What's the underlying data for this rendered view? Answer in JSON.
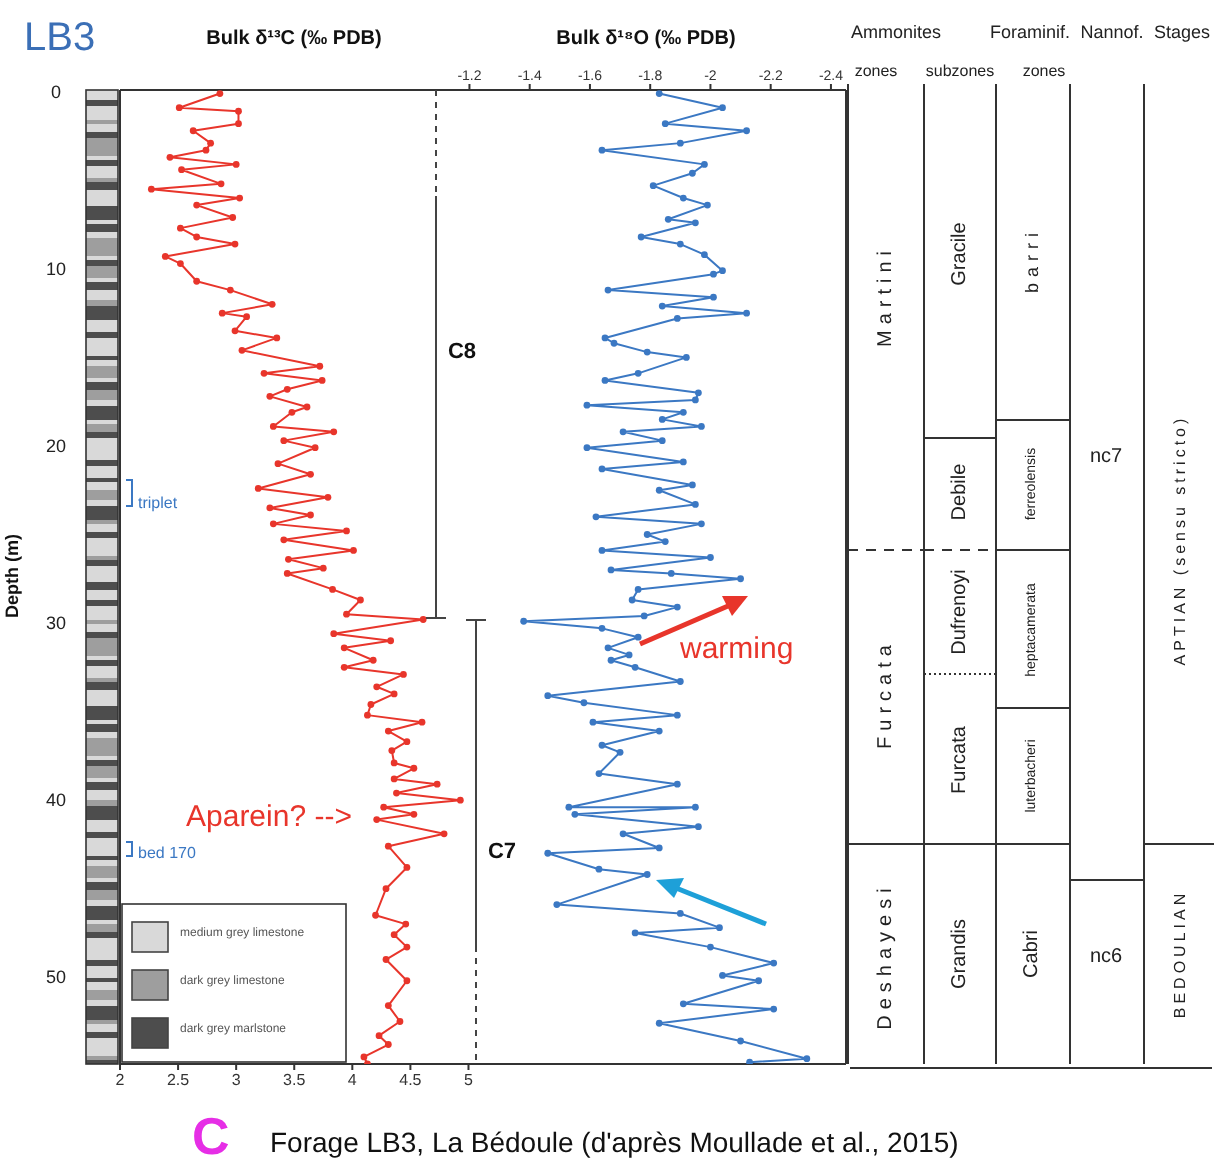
{
  "chart_data": {
    "type": "line",
    "title": "LB3",
    "xlabel": "Bulk δ¹³C (‰ PDB)",
    "x2label": "Bulk δ¹⁸O (‰ PDB)",
    "ylabel": "Depth (m)",
    "marker": "circle",
    "xlim": [
      2,
      8.25
    ],
    "xticks": [
      2,
      2.5,
      3,
      3.5,
      4,
      4.5,
      5
    ],
    "x2lim": [
      -0.04,
      -2.45
    ],
    "x2ticks": [
      -1.2,
      -1.4,
      -1.6,
      -1.8,
      -2,
      -2.2,
      -2.4
    ],
    "ylim": [
      55,
      0
    ],
    "yticks": [
      0,
      10,
      20,
      30,
      40,
      50
    ],
    "series": [
      {
        "color": "#e8352b",
        "x": [
          2.86,
          2.51,
          3.02,
          3.02,
          2.63,
          2.78,
          2.74,
          2.43,
          3.0,
          2.53,
          2.87,
          2.27,
          3.03,
          2.66,
          2.97,
          2.52,
          2.66,
          2.99,
          2.39,
          2.52,
          2.66,
          2.95,
          3.31,
          2.88,
          3.09,
          2.99,
          3.35,
          3.05,
          3.72,
          3.24,
          3.74,
          3.44,
          3.29,
          3.61,
          3.48,
          3.32,
          3.84,
          3.41,
          3.68,
          3.36,
          3.64,
          3.19,
          3.79,
          3.29,
          3.64,
          3.32,
          3.95,
          3.41,
          4.01,
          3.45,
          3.75,
          3.44,
          3.83,
          4.07,
          3.95,
          4.61,
          3.84,
          4.33,
          3.93,
          4.18,
          3.93,
          4.44,
          4.21,
          4.36,
          4.16,
          4.13,
          4.6,
          4.31,
          4.47,
          4.34,
          4.36,
          4.53,
          4.36,
          4.73,
          4.38,
          4.93,
          4.27,
          4.53,
          4.21,
          4.79,
          4.31,
          4.47,
          4.29,
          4.2,
          4.46,
          4.36,
          4.47,
          4.29,
          4.47,
          4.31,
          4.41,
          4.23,
          4.31,
          4.1,
          4.13
        ],
        "values": [
          0.2,
          1.0,
          1.2,
          1.9,
          2.3,
          3.0,
          3.4,
          3.8,
          4.2,
          4.5,
          5.3,
          5.6,
          6.1,
          6.5,
          7.2,
          7.8,
          8.3,
          8.7,
          9.4,
          9.8,
          10.8,
          11.3,
          12.1,
          12.6,
          12.8,
          13.6,
          14.0,
          14.7,
          15.6,
          16.0,
          16.4,
          16.9,
          17.3,
          17.9,
          18.2,
          19.0,
          19.3,
          19.8,
          20.2,
          21.1,
          21.7,
          22.5,
          23.0,
          23.6,
          24.0,
          24.5,
          24.9,
          25.4,
          26.0,
          26.5,
          27.0,
          27.3,
          28.2,
          28.8,
          29.6,
          29.9,
          30.7,
          31.1,
          31.5,
          32.2,
          32.6,
          33.0,
          33.7,
          34.1,
          34.7,
          35.3,
          35.7,
          36.2,
          36.8,
          37.3,
          38.0,
          38.3,
          38.9,
          39.2,
          39.7,
          40.1,
          40.5,
          40.9,
          41.2,
          42.0,
          42.7,
          43.9,
          45.1,
          46.6,
          47.1,
          47.7,
          48.4,
          49.1,
          50.3,
          51.7,
          52.6,
          53.4,
          53.9,
          54.6,
          55.0
        ]
      },
      {
        "color": "#3b78c3",
        "axis": "x2",
        "x": [
          -1.83,
          -2.04,
          -1.85,
          -2.12,
          -1.9,
          -1.64,
          -1.98,
          -1.94,
          -1.81,
          -1.91,
          -1.99,
          -1.86,
          -1.95,
          -1.77,
          -1.9,
          -1.98,
          -2.04,
          -2.01,
          -1.66,
          -2.01,
          -1.84,
          -2.12,
          -1.89,
          -1.65,
          -1.68,
          -1.79,
          -1.92,
          -1.76,
          -1.65,
          -1.96,
          -1.95,
          -1.59,
          -1.91,
          -1.84,
          -1.97,
          -1.71,
          -1.84,
          -1.59,
          -1.91,
          -1.64,
          -1.94,
          -1.83,
          -1.95,
          -1.62,
          -1.97,
          -1.79,
          -1.85,
          -1.64,
          -2.0,
          -1.67,
          -1.87,
          -2.1,
          -1.76,
          -1.74,
          -1.89,
          -1.78,
          -1.38,
          -1.64,
          -1.76,
          -1.66,
          -1.73,
          -1.67,
          -1.75,
          -1.9,
          -1.46,
          -1.58,
          -1.89,
          -1.61,
          -1.83,
          -1.64,
          -1.7,
          -1.63,
          -1.89,
          -1.53,
          -1.95,
          -1.55,
          -1.96,
          -1.71,
          -1.83,
          -1.46,
          -1.63,
          -1.79,
          -1.49,
          -1.9,
          -2.03,
          -1.75,
          -2.0,
          -2.21,
          -2.04,
          -2.16,
          -1.91,
          -2.21,
          -1.83,
          -2.1,
          -2.32,
          -2.13
        ],
        "values": [
          0.2,
          1.0,
          1.9,
          2.3,
          3.0,
          3.4,
          4.2,
          4.7,
          5.4,
          6.1,
          6.5,
          7.3,
          7.5,
          8.3,
          8.7,
          9.3,
          10.2,
          10.4,
          11.3,
          11.7,
          12.2,
          12.6,
          12.9,
          14.0,
          14.3,
          14.8,
          15.1,
          16.0,
          16.4,
          17.1,
          17.5,
          17.8,
          18.2,
          18.6,
          19.0,
          19.3,
          19.8,
          20.2,
          21.0,
          21.4,
          22.3,
          22.6,
          23.4,
          24.1,
          24.5,
          25.1,
          25.5,
          26.0,
          26.4,
          27.1,
          27.3,
          27.6,
          28.2,
          28.8,
          29.2,
          29.7,
          30.0,
          30.4,
          30.9,
          31.5,
          31.9,
          32.2,
          32.6,
          33.4,
          34.2,
          34.6,
          35.3,
          35.7,
          36.2,
          37.0,
          37.4,
          38.6,
          39.2,
          40.5,
          40.5,
          40.9,
          41.6,
          42.0,
          42.8,
          43.1,
          44.0,
          44.3,
          46.0,
          46.5,
          47.3,
          47.6,
          48.4,
          49.3,
          50.0,
          50.3,
          51.6,
          51.9,
          52.7,
          53.7,
          54.7,
          54.9
        ]
      }
    ],
    "annotations": [
      "C8",
      "C7",
      "triplet",
      "bed 170",
      "Aparein? -->",
      "warming",
      "medium grey limestone",
      "dark grey limestone",
      "dark grey marlstone",
      "Ammonites",
      "zones",
      "subzones",
      "Foraminif.",
      "zones",
      "Nannof.",
      "Stages",
      "Martini",
      "Furcata",
      "Deshayesi",
      "Gracile",
      "Debile",
      "Dufrenoyi",
      "Furcata",
      "Grandis",
      "barri",
      "ferreolensis",
      "heptacamerata",
      "luterbacheri",
      "Cabri",
      "nc7",
      "nc6",
      "APTIAN (sensu stricto)",
      "BEDOULIAN",
      "C",
      "Forage LB3, La Bédoule (d'après Moullade et al., 2015)"
    ]
  }
}
